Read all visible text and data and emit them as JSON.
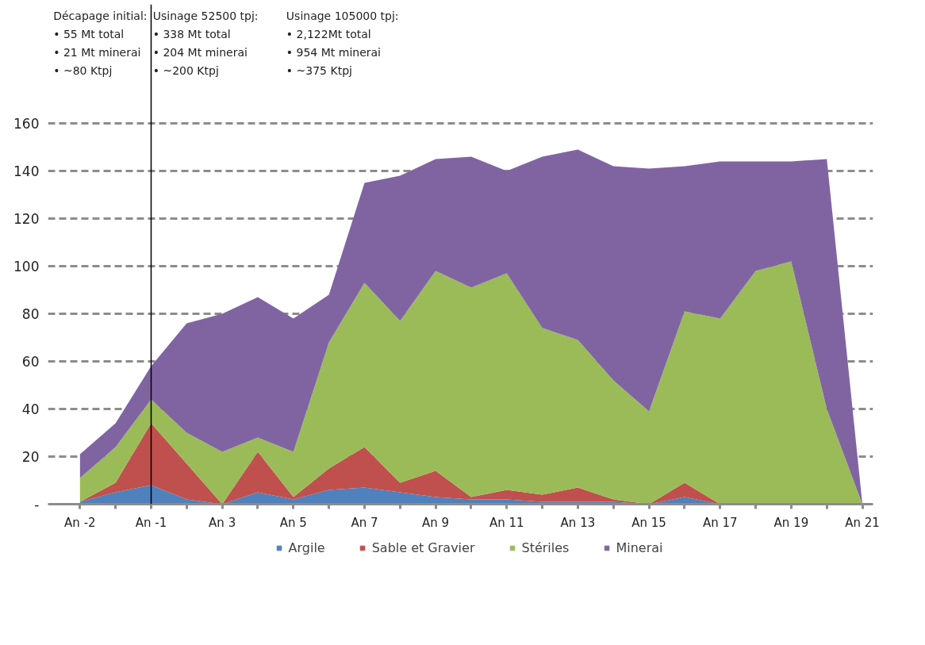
{
  "chart_data": {
    "type": "area",
    "stacked": true,
    "categories": [
      "An -2",
      null,
      "An -1",
      null,
      "An 3",
      null,
      "An 5",
      null,
      "An 7",
      null,
      "An 9",
      null,
      "An 11",
      null,
      "An 13",
      null,
      "An 15",
      null,
      "An 17",
      null,
      "An 19",
      null,
      "An 21"
    ],
    "series": [
      {
        "name": "Argile",
        "color": "#4f81bd",
        "values": [
          1,
          5,
          8,
          2,
          0,
          5,
          2,
          6,
          7,
          5,
          3,
          2,
          2,
          1,
          1,
          1,
          0,
          3,
          0,
          0,
          0,
          0,
          0
        ]
      },
      {
        "name": "Sable et Gravier",
        "color": "#c0504d",
        "values": [
          0,
          4,
          26,
          15,
          0,
          17,
          1,
          9,
          17,
          4,
          11,
          1,
          4,
          3,
          6,
          1,
          0,
          6,
          0,
          0,
          0,
          0,
          0
        ]
      },
      {
        "name": "Stériles",
        "color": "#9bbb59",
        "values": [
          10,
          15,
          10,
          13,
          22,
          6,
          19,
          53,
          69,
          68,
          84,
          88,
          91,
          70,
          62,
          50,
          39,
          72,
          78,
          98,
          102,
          40,
          0
        ]
      },
      {
        "name": "Minerai",
        "color": "#8064a2",
        "values": [
          10,
          10,
          14,
          46,
          58,
          59,
          56,
          20,
          42,
          61,
          47,
          55,
          43,
          72,
          80,
          90,
          102,
          61,
          66,
          46,
          42,
          105,
          0
        ]
      }
    ],
    "ylim": [
      0,
      210
    ],
    "yticks": [
      {
        "value": 0,
        "label": "-"
      },
      20,
      40,
      60,
      80,
      100,
      120,
      140,
      160
    ],
    "grid": "y",
    "legend": "bottom",
    "ref_lines": [
      {
        "axis": "x",
        "value": "An -1",
        "color": "#000000"
      }
    ],
    "annotations": [
      "Décapage initial:\n•   55 Mt total\n•   21 Mt minerai\n•   ~80 Ktpj",
      "Usinage 52500 tpj:\n•  338 Mt total\n•  204 Mt minerai\n•    ~200 Ktpj",
      "Usinage 105000 tpj:\n•    2,122Mt total\n•    954 Mt minerai\n•    ~375  Ktpj"
    ]
  }
}
